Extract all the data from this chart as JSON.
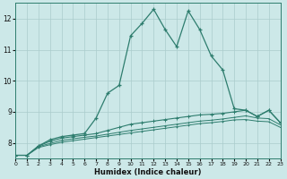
{
  "xlabel": "Humidex (Indice chaleur)",
  "x_values": [
    0,
    1,
    2,
    3,
    4,
    5,
    6,
    7,
    8,
    9,
    10,
    11,
    12,
    13,
    14,
    15,
    16,
    17,
    18,
    19,
    20,
    21,
    22,
    23
  ],
  "line1": [
    7.6,
    7.6,
    7.9,
    8.1,
    8.2,
    8.25,
    8.3,
    8.8,
    9.6,
    9.85,
    11.45,
    11.85,
    12.3,
    11.65,
    11.1,
    12.25,
    11.65,
    10.8,
    10.35,
    9.1,
    9.05,
    8.85,
    9.05,
    8.65
  ],
  "line2": [
    7.6,
    7.6,
    7.9,
    8.05,
    8.15,
    8.2,
    8.25,
    8.3,
    8.4,
    8.5,
    8.6,
    8.65,
    8.7,
    8.75,
    8.8,
    8.85,
    8.9,
    8.92,
    8.95,
    9.0,
    9.05,
    8.85,
    9.05,
    8.65
  ],
  "line3": [
    7.6,
    7.6,
    7.88,
    7.98,
    8.08,
    8.13,
    8.18,
    8.22,
    8.28,
    8.34,
    8.4,
    8.45,
    8.5,
    8.55,
    8.6,
    8.65,
    8.7,
    8.73,
    8.77,
    8.82,
    8.87,
    8.8,
    8.78,
    8.58
  ],
  "line4": [
    7.6,
    7.6,
    7.85,
    7.94,
    8.02,
    8.07,
    8.12,
    8.17,
    8.22,
    8.27,
    8.32,
    8.37,
    8.42,
    8.47,
    8.52,
    8.57,
    8.62,
    8.65,
    8.69,
    8.74,
    8.75,
    8.7,
    8.68,
    8.5
  ],
  "line_color": "#2e7d6e",
  "bg_color": "#cce8e8",
  "grid_color": "#aacccc",
  "ylim": [
    7.5,
    12.5
  ],
  "xlim": [
    0,
    23
  ],
  "yticks": [
    8,
    9,
    10,
    11,
    12
  ],
  "xticks": [
    0,
    1,
    2,
    3,
    4,
    5,
    6,
    7,
    8,
    9,
    10,
    11,
    12,
    13,
    14,
    15,
    16,
    17,
    18,
    19,
    20,
    21,
    22,
    23
  ]
}
